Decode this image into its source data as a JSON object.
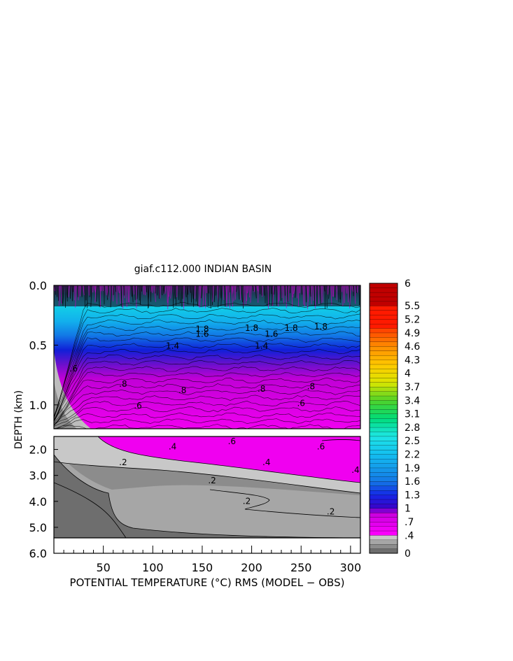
{
  "chart_data": {
    "type": "heatmap",
    "title": "giaf.c112.000 INDIAN BASIN",
    "xlabel": "POTENTIAL TEMPERATURE (°C) RMS (MODEL − OBS)",
    "ylabel": "DEPTH (km)",
    "xlim": [
      0,
      310
    ],
    "x_ticks": [
      "50",
      "100",
      "150",
      "200",
      "250",
      "300"
    ],
    "x_tick_values": [
      50,
      100,
      150,
      200,
      250,
      300
    ],
    "upper_panel": {
      "ylim": [
        0.0,
        1.2
      ],
      "y_ticks": [
        "0.0",
        "0.5",
        "1.0"
      ],
      "y_tick_values": [
        0.0,
        0.5,
        1.0
      ]
    },
    "lower_panel": {
      "ylim": [
        1.5,
        6.0
      ],
      "y_ticks": [
        "2.0",
        "3.0",
        "4.0",
        "5.0",
        "6.0"
      ],
      "y_tick_values": [
        2.0,
        3.0,
        4.0,
        5.0,
        6.0
      ]
    },
    "colorbar": {
      "min": 0,
      "max": 6,
      "labels": [
        "6",
        "5.5",
        "5.2",
        "4.9",
        "4.6",
        "4.3",
        "4",
        "3.7",
        "3.4",
        "3.1",
        "2.8",
        "2.5",
        "2.2",
        "1.9",
        "1.6",
        "1.3",
        "1",
        ".7",
        ".4",
        "0"
      ],
      "label_values": [
        6,
        5.5,
        5.2,
        4.9,
        4.6,
        4.3,
        4,
        3.7,
        3.4,
        3.1,
        2.8,
        2.5,
        2.2,
        1.9,
        1.6,
        1.3,
        1,
        0.7,
        0.4,
        0
      ]
    },
    "contour_labels": {
      "upper": [
        {
          "text": "1.8",
          "x": 240,
          "y": 0.38
        },
        {
          "text": "1.8",
          "x": 200,
          "y": 0.38
        },
        {
          "text": "1.6",
          "x": 150,
          "y": 0.43
        },
        {
          "text": "1.8",
          "x": 150,
          "y": 0.39
        },
        {
          "text": "1.8",
          "x": 270,
          "y": 0.37
        },
        {
          "text": "1.6",
          "x": 220,
          "y": 0.43
        },
        {
          "text": "1.4",
          "x": 210,
          "y": 0.53
        },
        {
          "text": "1.4",
          "x": 120,
          "y": 0.53
        },
        {
          "text": ".8",
          "x": 70,
          "y": 0.85
        },
        {
          "text": ".8",
          "x": 130,
          "y": 0.9
        },
        {
          "text": ".8",
          "x": 210,
          "y": 0.89
        },
        {
          "text": ".8",
          "x": 260,
          "y": 0.87
        },
        {
          "text": ".6",
          "x": 85,
          "y": 1.03
        },
        {
          "text": ".6",
          "x": 250,
          "y": 1.01
        },
        {
          "text": ".6",
          "x": 20,
          "y": 0.72
        }
      ],
      "lower": [
        {
          "text": ".4",
          "x": 120,
          "y": 2.0
        },
        {
          "text": ".6",
          "x": 180,
          "y": 1.8
        },
        {
          "text": ".6",
          "x": 270,
          "y": 2.0
        },
        {
          "text": ".4",
          "x": 215,
          "y": 2.6
        },
        {
          "text": ".4",
          "x": 305,
          "y": 2.9
        },
        {
          "text": ".2",
          "x": 70,
          "y": 2.6
        },
        {
          "text": ".2",
          "x": 160,
          "y": 3.3
        },
        {
          "text": ".2",
          "x": 195,
          "y": 4.1
        },
        {
          "text": ".2",
          "x": 280,
          "y": 4.5
        }
      ]
    }
  }
}
